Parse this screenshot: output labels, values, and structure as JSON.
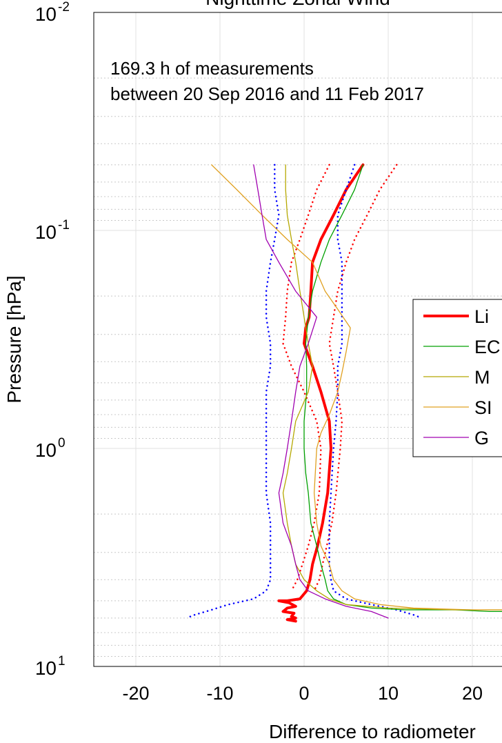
{
  "chart_data": {
    "type": "line",
    "title": "Nighttime Zonal Wind",
    "xlabel": "Difference to radiometer",
    "ylabel": "Pressure [hPa]",
    "xlim": [
      -25,
      25
    ],
    "ylim": [
      0.01,
      10
    ],
    "yscale": "log",
    "grid": true,
    "x_ticks": [
      -20,
      -10,
      0,
      10,
      20
    ],
    "y_ticks": [
      {
        "base": "10",
        "exp": "-2"
      },
      {
        "base": "10",
        "exp": "-1"
      },
      {
        "base": "10",
        "exp": "0"
      },
      {
        "base": "10",
        "exp": "1"
      }
    ],
    "annotation": [
      "169.3 h of measurements",
      "between 20 Sep 2016 and 11 Feb 2017"
    ],
    "legend_position": "right",
    "legend": [
      "Li",
      "EC",
      "M",
      "SI",
      "G"
    ],
    "series": [
      {
        "name": "Li",
        "color": "#ff0000",
        "width": 4,
        "dash": "solid",
        "points": [
          [
            7.0,
            0.05
          ],
          [
            5.0,
            0.065
          ],
          [
            3.5,
            0.085
          ],
          [
            2.0,
            0.11
          ],
          [
            1.0,
            0.14
          ],
          [
            0.8,
            0.19
          ],
          [
            0.6,
            0.25
          ],
          [
            0.2,
            0.28
          ],
          [
            0.0,
            0.33
          ],
          [
            1.0,
            0.42
          ],
          [
            2.0,
            0.55
          ],
          [
            3.0,
            0.75
          ],
          [
            3.2,
            1.0
          ],
          [
            2.8,
            1.6
          ],
          [
            2.2,
            2.2
          ],
          [
            1.6,
            2.8
          ],
          [
            1.0,
            3.4
          ],
          [
            0.7,
            4.0
          ],
          [
            0.3,
            4.5
          ],
          [
            -0.5,
            4.9
          ],
          [
            -2.0,
            5.0
          ],
          [
            -3.0,
            5.0
          ],
          [
            -1.8,
            5.1
          ],
          [
            -1.0,
            5.3
          ],
          [
            -2.0,
            5.4
          ],
          [
            -2.5,
            5.6
          ],
          [
            -1.2,
            5.7
          ],
          [
            -1.5,
            5.9
          ],
          [
            -1.0,
            6.0
          ],
          [
            -2.0,
            6.1
          ],
          [
            -1.0,
            6.2
          ]
        ]
      },
      {
        "name": "Li upper",
        "color": "#ff0000",
        "width": 2.5,
        "dash": "dot",
        "points": [
          [
            11.0,
            0.05
          ],
          [
            9.0,
            0.065
          ],
          [
            7.5,
            0.085
          ],
          [
            6.0,
            0.11
          ],
          [
            5.0,
            0.14
          ],
          [
            4.0,
            0.19
          ],
          [
            3.5,
            0.25
          ],
          [
            3.0,
            0.33
          ],
          [
            3.5,
            0.42
          ],
          [
            4.0,
            0.55
          ],
          [
            4.5,
            0.75
          ],
          [
            4.3,
            1.0
          ],
          [
            3.8,
            1.6
          ],
          [
            3.3,
            2.2
          ],
          [
            2.7,
            2.8
          ],
          [
            2.2,
            3.4
          ],
          [
            1.8,
            4.0
          ],
          [
            1.2,
            4.5
          ]
        ]
      },
      {
        "name": "Li lower",
        "color": "#ff0000",
        "width": 2.5,
        "dash": "dot",
        "points": [
          [
            3.0,
            0.05
          ],
          [
            1.5,
            0.065
          ],
          [
            0.5,
            0.085
          ],
          [
            -0.5,
            0.11
          ],
          [
            -1.5,
            0.14
          ],
          [
            -2.0,
            0.19
          ],
          [
            -2.2,
            0.25
          ],
          [
            -2.5,
            0.33
          ],
          [
            -1.5,
            0.42
          ],
          [
            0.0,
            0.55
          ],
          [
            1.5,
            0.75
          ],
          [
            2.0,
            1.0
          ],
          [
            1.8,
            1.6
          ],
          [
            1.2,
            2.2
          ],
          [
            0.5,
            2.8
          ],
          [
            -0.2,
            3.4
          ],
          [
            -0.8,
            4.0
          ],
          [
            -1.5,
            4.5
          ]
        ]
      },
      {
        "name": "G upper",
        "color": "#0000ff",
        "width": 2.5,
        "dash": "dot",
        "points": [
          [
            6.0,
            0.05
          ],
          [
            5.0,
            0.065
          ],
          [
            4.0,
            0.085
          ],
          [
            4.0,
            0.11
          ],
          [
            4.5,
            0.14
          ],
          [
            4.5,
            0.19
          ],
          [
            4.5,
            0.25
          ],
          [
            4.5,
            0.33
          ],
          [
            4.0,
            0.42
          ],
          [
            4.0,
            0.55
          ],
          [
            3.8,
            0.75
          ],
          [
            3.5,
            1.0
          ],
          [
            3.2,
            1.6
          ],
          [
            3.0,
            2.2
          ],
          [
            3.0,
            2.8
          ],
          [
            3.0,
            3.4
          ],
          [
            3.2,
            4.0
          ],
          [
            3.5,
            4.5
          ],
          [
            5.0,
            4.9
          ],
          [
            8.0,
            5.2
          ],
          [
            11.0,
            5.5
          ],
          [
            13.0,
            5.8
          ],
          [
            14.0,
            6.0
          ]
        ]
      },
      {
        "name": "G lower",
        "color": "#0000ff",
        "width": 2.5,
        "dash": "dot",
        "points": [
          [
            -3.5,
            0.05
          ],
          [
            -3.5,
            0.065
          ],
          [
            -3.0,
            0.085
          ],
          [
            -3.5,
            0.11
          ],
          [
            -4.0,
            0.14
          ],
          [
            -4.5,
            0.19
          ],
          [
            -4.5,
            0.25
          ],
          [
            -4.0,
            0.33
          ],
          [
            -4.0,
            0.42
          ],
          [
            -4.5,
            0.55
          ],
          [
            -4.5,
            0.75
          ],
          [
            -4.5,
            1.0
          ],
          [
            -4.5,
            1.6
          ],
          [
            -4.0,
            2.2
          ],
          [
            -4.0,
            2.8
          ],
          [
            -4.0,
            3.4
          ],
          [
            -4.0,
            4.0
          ],
          [
            -4.5,
            4.5
          ],
          [
            -6.0,
            4.9
          ],
          [
            -9.0,
            5.2
          ],
          [
            -11.0,
            5.5
          ],
          [
            -13.0,
            5.8
          ],
          [
            -14.0,
            6.0
          ]
        ]
      },
      {
        "name": "EC",
        "color": "#00a000",
        "width": 1.3,
        "dash": "solid",
        "points": [
          [
            7.0,
            0.05
          ],
          [
            6.0,
            0.065
          ],
          [
            4.5,
            0.085
          ],
          [
            3.0,
            0.11
          ],
          [
            2.0,
            0.14
          ],
          [
            1.0,
            0.19
          ],
          [
            0.5,
            0.25
          ],
          [
            0.2,
            0.33
          ],
          [
            0.3,
            0.42
          ],
          [
            0.3,
            0.55
          ],
          [
            0.0,
            0.75
          ],
          [
            0.0,
            1.0
          ],
          [
            0.2,
            1.3
          ],
          [
            0.5,
            1.6
          ],
          [
            0.8,
            2.2
          ],
          [
            1.5,
            2.8
          ],
          [
            2.0,
            3.4
          ],
          [
            2.5,
            4.0
          ],
          [
            2.8,
            4.5
          ],
          [
            3.5,
            4.9
          ],
          [
            5.0,
            5.2
          ],
          [
            8.0,
            5.4
          ],
          [
            12.0,
            5.5
          ],
          [
            18.0,
            5.5
          ],
          [
            22.0,
            5.6
          ],
          [
            25.0,
            5.6
          ]
        ]
      },
      {
        "name": "M",
        "color": "#b5a800",
        "width": 1.3,
        "dash": "solid",
        "points": [
          [
            -2.2,
            0.05
          ],
          [
            -2.2,
            0.065
          ],
          [
            -2.0,
            0.085
          ],
          [
            -1.5,
            0.11
          ],
          [
            -1.0,
            0.14
          ],
          [
            -0.5,
            0.19
          ],
          [
            0.0,
            0.25
          ],
          [
            0.5,
            0.33
          ],
          [
            1.0,
            0.42
          ],
          [
            0.5,
            0.55
          ],
          [
            -1.0,
            0.75
          ],
          [
            -1.5,
            1.0
          ],
          [
            -2.0,
            1.3
          ],
          [
            -2.5,
            1.6
          ],
          [
            -2.0,
            2.2
          ],
          [
            -1.5,
            2.8
          ],
          [
            -1.0,
            3.4
          ],
          [
            0.0,
            4.0
          ],
          [
            1.5,
            4.5
          ],
          [
            3.0,
            4.9
          ],
          [
            5.0,
            5.2
          ],
          [
            10.0,
            5.4
          ],
          [
            18.0,
            5.5
          ],
          [
            25.0,
            5.5
          ]
        ]
      },
      {
        "name": "SI",
        "color": "#e0a020",
        "width": 1.3,
        "dash": "solid",
        "points": [
          [
            -11.0,
            0.05
          ],
          [
            -8.0,
            0.065
          ],
          [
            -5.0,
            0.085
          ],
          [
            -2.0,
            0.11
          ],
          [
            1.0,
            0.14
          ],
          [
            2.5,
            0.19
          ],
          [
            4.0,
            0.23
          ],
          [
            5.5,
            0.28
          ],
          [
            5.0,
            0.36
          ],
          [
            4.5,
            0.45
          ],
          [
            4.0,
            0.55
          ],
          [
            3.0,
            0.7
          ],
          [
            2.0,
            0.85
          ],
          [
            1.5,
            1.0
          ],
          [
            1.2,
            1.6
          ],
          [
            1.5,
            2.2
          ],
          [
            2.0,
            2.8
          ],
          [
            3.0,
            3.4
          ],
          [
            3.5,
            4.0
          ],
          [
            4.5,
            4.5
          ],
          [
            6.0,
            4.9
          ],
          [
            9.0,
            5.2
          ],
          [
            13.0,
            5.4
          ],
          [
            20.0,
            5.5
          ],
          [
            25.0,
            5.5
          ]
        ]
      },
      {
        "name": "G",
        "color": "#a000b0",
        "width": 1.3,
        "dash": "solid",
        "points": [
          [
            -6.0,
            0.05
          ],
          [
            -5.5,
            0.065
          ],
          [
            -5.0,
            0.085
          ],
          [
            -4.5,
            0.11
          ],
          [
            -3.0,
            0.14
          ],
          [
            -1.0,
            0.19
          ],
          [
            1.5,
            0.25
          ],
          [
            0.5,
            0.33
          ],
          [
            -0.5,
            0.42
          ],
          [
            -1.0,
            0.55
          ],
          [
            -1.5,
            0.75
          ],
          [
            -2.0,
            1.0
          ],
          [
            -2.5,
            1.3
          ],
          [
            -3.0,
            1.6
          ],
          [
            -2.5,
            2.2
          ],
          [
            -1.5,
            2.8
          ],
          [
            -1.0,
            3.4
          ],
          [
            -0.5,
            4.0
          ],
          [
            0.5,
            4.5
          ],
          [
            2.5,
            4.9
          ],
          [
            5.0,
            5.3
          ],
          [
            8.0,
            5.6
          ],
          [
            10.0,
            6.0
          ]
        ]
      }
    ]
  }
}
